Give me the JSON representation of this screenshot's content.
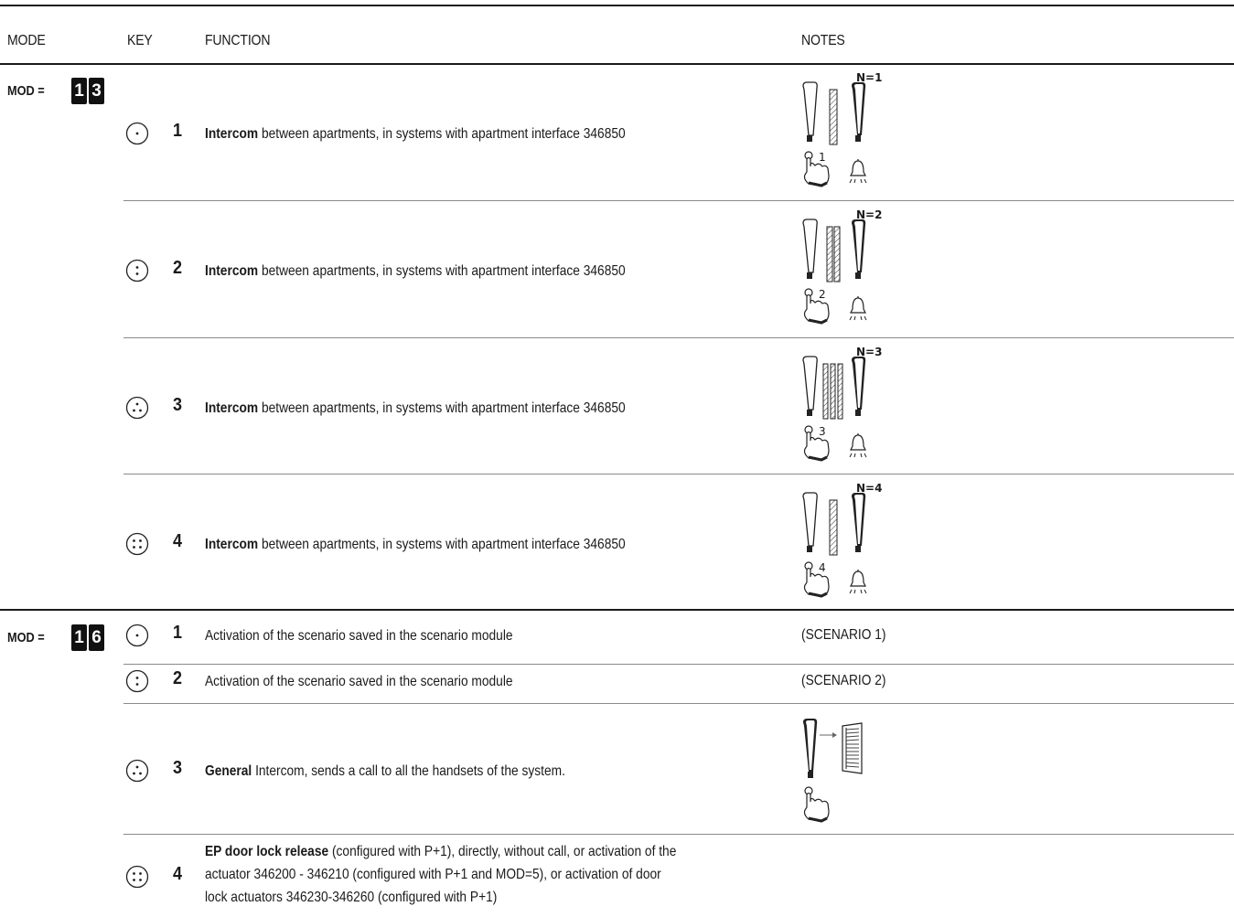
{
  "header": {
    "mode": "MODE",
    "key": "KEY",
    "function": "FUNCTION",
    "notes": "NOTES"
  },
  "mod13": {
    "label": "MOD =",
    "digits": [
      "1",
      "3"
    ],
    "rows": [
      {
        "key": "1",
        "func_bold": "Intercom",
        "func_text": " between apartments, in systems with apartment interface 346850",
        "n_label": "N=1",
        "diag_num": "1",
        "key_icon": "one-dot-key-icon"
      },
      {
        "key": "2",
        "func_bold": "Intercom",
        "func_text": " between apartments, in systems with apartment interface 346850",
        "n_label": "N=2",
        "diag_num": "2",
        "key_icon": "two-dot-key-icon"
      },
      {
        "key": "3",
        "func_bold": "Intercom",
        "func_text": " between apartments, in systems with apartment interface 346850",
        "n_label": "N=3",
        "diag_num": "3",
        "key_icon": "three-dot-key-icon"
      },
      {
        "key": "4",
        "func_bold": "Intercom",
        "func_text": " between apartments, in systems with apartment interface 346850",
        "n_label": "N=4",
        "diag_num": "4",
        "key_icon": "four-dot-key-icon"
      }
    ]
  },
  "mod16": {
    "label": "MOD =",
    "digits": [
      "1",
      "6"
    ],
    "rows": [
      {
        "key": "1",
        "func_text": "Activation of the scenario saved in the scenario module",
        "note": "(SCENARIO 1)",
        "key_icon": "one-dot-key-icon"
      },
      {
        "key": "2",
        "func_text": "Activation of the scenario saved in the scenario module",
        "note": "(SCENARIO 2)",
        "key_icon": "two-dot-key-icon"
      },
      {
        "key": "3",
        "func_bold": "General",
        "func_text": " Intercom, sends a call to all the handsets of the system.",
        "key_icon": "three-dot-key-icon"
      },
      {
        "key": "4",
        "func_bold": "EP door lock release",
        "func_line1": " (configured with P+1), directly, without call, or activation of the",
        "func_line2": "actuator 346200 - 346210 (configured with P+1 and MOD=5), or activation of door",
        "func_line3": "lock actuators 346230-346260 (configured with P+1)",
        "key_icon": "four-dot-key-icon"
      }
    ]
  }
}
